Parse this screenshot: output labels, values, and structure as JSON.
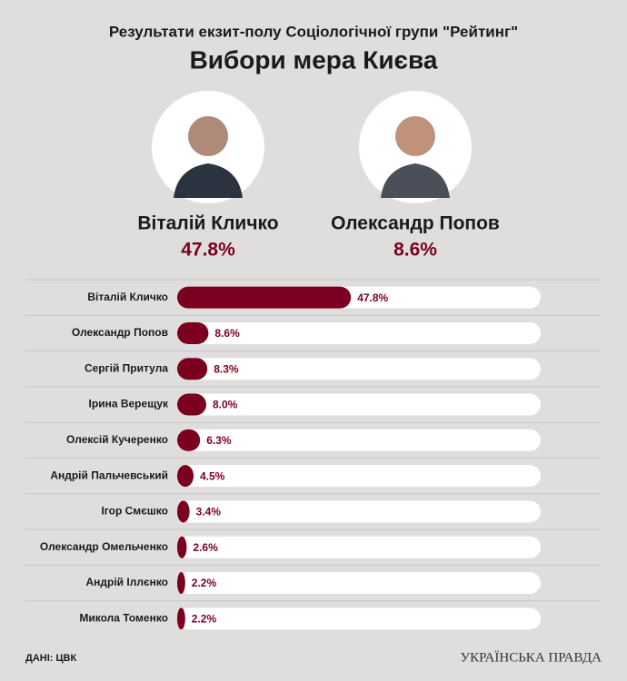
{
  "chart_data": {
    "type": "bar",
    "orientation": "horizontal",
    "subtitle": "Результати екзит-полу Соціологічної групи \"Рейтинг\"",
    "title": "Вибори мера Києва",
    "categories": [
      "Віталій Кличко",
      "Олександр Попов",
      "Сергій Притула",
      "Ірина Верещук",
      "Олексій Кучеренко",
      "Андрій Пальчевський",
      "Ігор Смєшко",
      "Олександр Омельченко",
      "Андрій Іллєнко",
      "Микола Томенко"
    ],
    "values": [
      47.8,
      8.6,
      8.3,
      8.0,
      6.3,
      4.5,
      3.4,
      2.6,
      2.2,
      2.2
    ],
    "value_labels": [
      "47.8%",
      "8.6%",
      "8.3%",
      "8.0%",
      "6.3%",
      "4.5%",
      "3.4%",
      "2.6%",
      "2.2%",
      "2.2%"
    ],
    "color": "#7b0020",
    "xlim": [
      0,
      100
    ],
    "source": "ДАНІ: ЦВК",
    "logo": "УКРАЇНСЬКА ПРАВДА"
  }
}
